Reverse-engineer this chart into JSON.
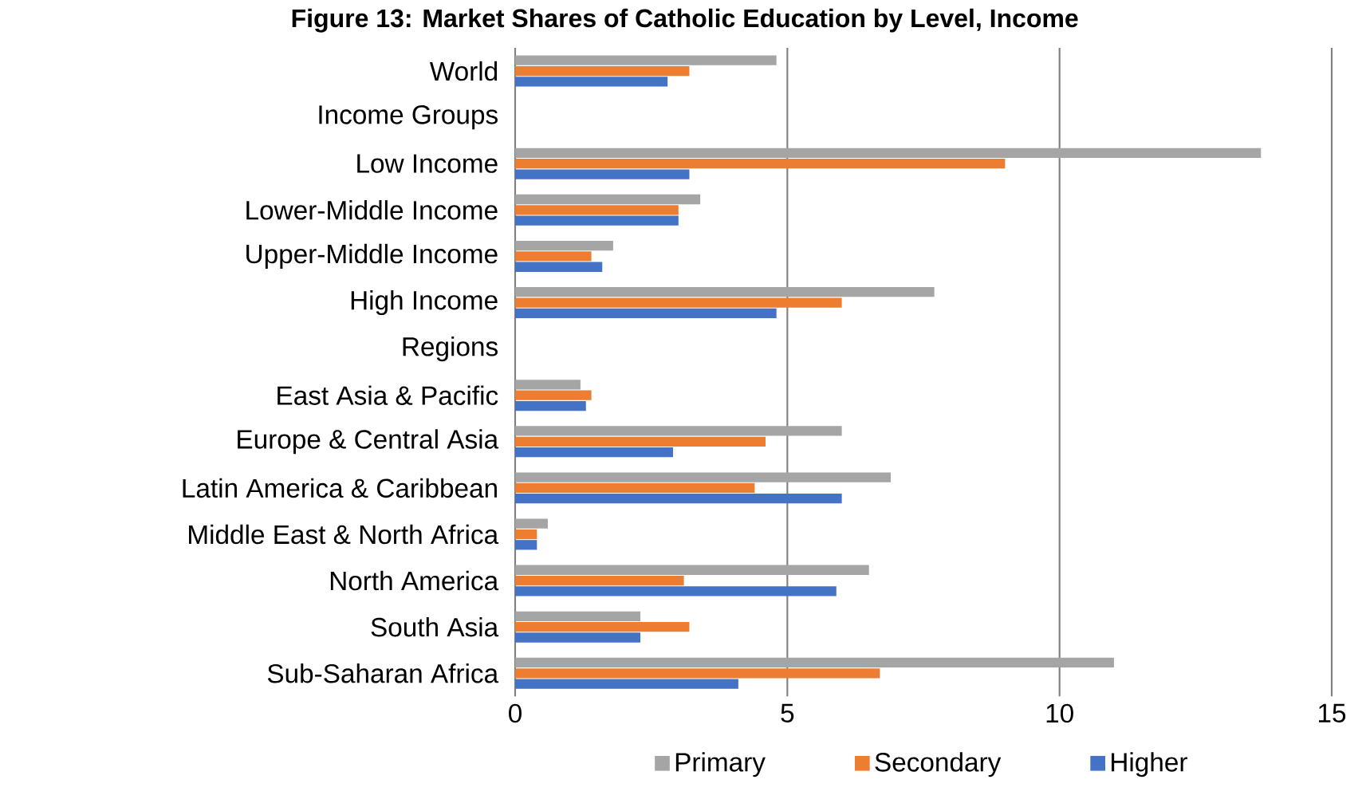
{
  "chart_data": {
    "type": "bar",
    "orientation": "horizontal",
    "title": "Figure 13: Market Shares of Catholic Education by Level, Income",
    "categories": [
      "World",
      "Income Groups",
      "Low Income",
      "Lower-Middle Income",
      "Upper-Middle Income",
      "High Income",
      "Regions",
      "East Asia & Pacific",
      "Europe & Central Asia",
      "Latin America & Caribbean",
      "Middle East & North Africa",
      "North America",
      "South Asia",
      "Sub-Saharan Africa"
    ],
    "series": [
      {
        "name": "Primary",
        "color": "#a5a5a5",
        "values": [
          4.8,
          null,
          13.7,
          3.4,
          1.8,
          7.7,
          null,
          1.2,
          6.0,
          6.9,
          0.6,
          6.5,
          2.3,
          11.0
        ]
      },
      {
        "name": "Secondary",
        "color": "#ed7d31",
        "values": [
          3.2,
          null,
          9.0,
          3.0,
          1.4,
          6.0,
          null,
          1.4,
          4.6,
          4.4,
          0.4,
          3.1,
          3.2,
          6.7
        ]
      },
      {
        "name": "Higher",
        "color": "#4472c4",
        "values": [
          2.8,
          null,
          3.2,
          3.0,
          1.6,
          4.8,
          null,
          1.3,
          2.9,
          6.0,
          0.4,
          5.9,
          2.3,
          4.1
        ]
      }
    ],
    "xlim": [
      0,
      15
    ],
    "xticks": [
      0,
      5,
      10,
      15
    ],
    "grid": "x",
    "legend": "bottom"
  }
}
